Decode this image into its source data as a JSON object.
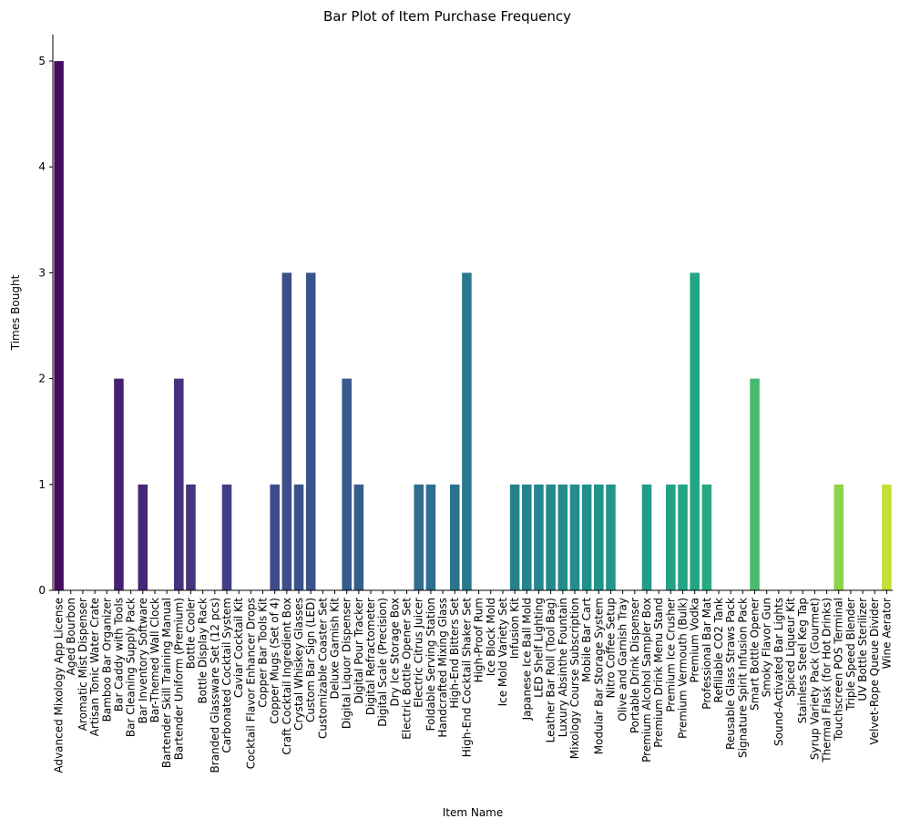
{
  "chart_data": {
    "type": "bar",
    "title": "Bar Plot of Item Purchase Frequency",
    "xlabel": "Item Name",
    "ylabel": "Times Bought",
    "ylim": [
      0,
      5.25
    ],
    "yticks": [
      0,
      1,
      2,
      3,
      4,
      5
    ],
    "palette": "viridis",
    "grid": false,
    "categories": [
      "Advanced Mixology App License",
      "Aged Bourbon",
      "Aromatic Mist Dispenser",
      "Artisan Tonic Water Crate",
      "Bamboo Bar Organizer",
      "Bar Caddy with Tools",
      "Bar Cleaning Supply Pack",
      "Bar Inventory Software",
      "Bar-Themed Wall Clock",
      "Bartender Skill Training Manual",
      "Bartender Uniform (Premium)",
      "Bottle Cooler",
      "Bottle Display Rack",
      "Branded Glassware Set (12 pcs)",
      "Carbonated Cocktail System",
      "Caviar Cocktail Kit",
      "Cocktail Flavor Enhancer Drops",
      "Copper Bar Tools Kit",
      "Copper Mugs (Set of 4)",
      "Craft Cocktail Ingredient Box",
      "Crystal Whiskey Glasses",
      "Custom Bar Sign (LED)",
      "Customizable Coaster Set",
      "Deluxe Garnish Kit",
      "Digital Liquor Dispenser",
      "Digital Pour Tracker",
      "Digital Refractometer",
      "Digital Scale (Precision)",
      "Dry Ice Storage Box",
      "Electric Bottle Opener Set",
      "Electric Citrus Juicer",
      "Foldable Serving Station",
      "Handcrafted Mixing Glass",
      "High-End Bitters Set",
      "High-End Cocktail Shaker Set",
      "High-Proof Rum",
      "Ice Block Mold",
      "Ice Mold Variety Set",
      "Infusion Kit",
      "Japanese Ice Ball Mold",
      "LED Shelf Lighting",
      "Leather Bar Roll (Tool Bag)",
      "Luxury Absinthe Fountain",
      "Mixology Course Subscription",
      "Mobile Bar Cart",
      "Modular Bar Storage System",
      "Nitro Coffee Setup",
      "Olive and Garnish Tray",
      "Portable Drink Dispenser",
      "Premium Alcohol Sampler Box",
      "Premium Drink Menu Stand",
      "Premium Ice Crusher",
      "Premium Vermouth (Bulk)",
      "Premium Vodka",
      "Professional Bar Mat",
      "Refillable CO2 Tank",
      "Reusable Glass Straws Pack",
      "Signature Spirit Infusion Pack",
      "Smart Bottle Opener",
      "Smoky Flavor Gun",
      "Sound-Activated Bar Lights",
      "Spiced Liqueur Kit",
      "Stainless Steel Keg Tap",
      "Syrup Variety Pack (Gourmet)",
      "Thermal Flask (for Hot Drinks)",
      "Touchscreen POS Terminal",
      "Triple Speed Blender",
      "UV Bottle Sterilizer",
      "Velvet-Rope Queue Divider",
      "Wine Aerator"
    ],
    "values": [
      5,
      0,
      0,
      0,
      0,
      2,
      0,
      1,
      0,
      0,
      2,
      1,
      0,
      0,
      1,
      0,
      0,
      0,
      1,
      3,
      1,
      3,
      0,
      0,
      2,
      1,
      0,
      0,
      0,
      0,
      1,
      1,
      0,
      1,
      3,
      0,
      0,
      0,
      1,
      1,
      1,
      1,
      1,
      1,
      1,
      1,
      1,
      0,
      0,
      1,
      0,
      1,
      1,
      3,
      1,
      0,
      0,
      0,
      2,
      0,
      0,
      0,
      0,
      0,
      0,
      1,
      0,
      0,
      0,
      1
    ]
  }
}
